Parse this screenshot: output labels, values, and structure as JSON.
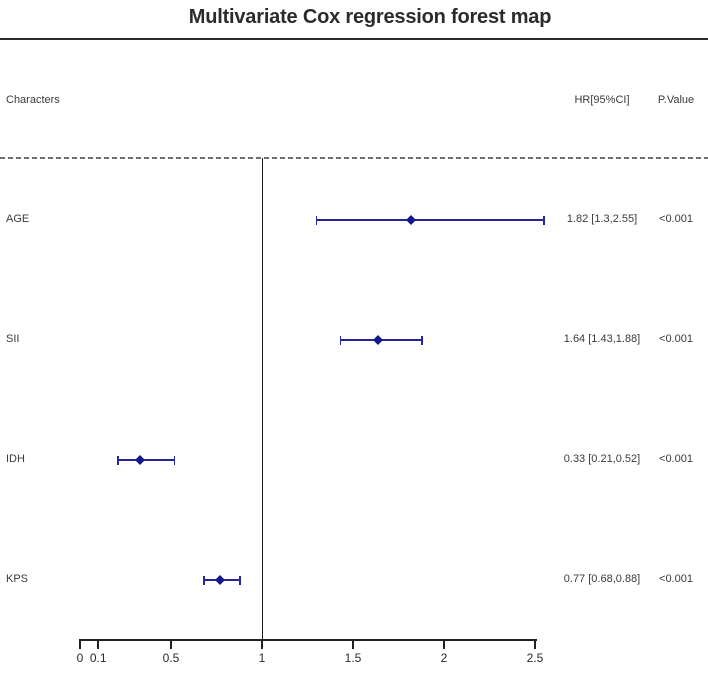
{
  "title": "Multivariate Cox regression forest map",
  "columns": {
    "characters": "Characters",
    "hr": "HR[95%CI]",
    "pvalue": "P.Value"
  },
  "chart_data": {
    "type": "forest",
    "title": "Multivariate Cox regression forest map",
    "xlabel": "",
    "x_axis": {
      "ticks": [
        0,
        0.1,
        0.5,
        1,
        1.5,
        2,
        2.5
      ],
      "tick_labels": [
        "0",
        "0.1",
        "0.5",
        "1",
        "1.5",
        "2",
        "2.5"
      ],
      "range": [
        0,
        2.55
      ],
      "reference_line": 1,
      "grid": false
    },
    "rows": [
      {
        "label": "AGE",
        "hr": 1.82,
        "ci_low": 1.3,
        "ci_high": 2.55,
        "hr_text": "1.82 [1.3,2.55]",
        "p_text": "<0.001"
      },
      {
        "label": "SII",
        "hr": 1.64,
        "ci_low": 1.43,
        "ci_high": 1.88,
        "hr_text": "1.64 [1.43,1.88]",
        "p_text": "<0.001"
      },
      {
        "label": "IDH",
        "hr": 0.33,
        "ci_low": 0.21,
        "ci_high": 0.52,
        "hr_text": "0.33 [0.21,0.52]",
        "p_text": "<0.001"
      },
      {
        "label": "KPS",
        "hr": 0.77,
        "ci_low": 0.68,
        "ci_high": 0.88,
        "hr_text": "0.77 [0.68,0.88]",
        "p_text": "<0.001"
      }
    ]
  },
  "colors": {
    "marker": "#15158c",
    "ci_line": "#26269b",
    "axis": "#222222",
    "ref_line": "#1a1a1a",
    "text": "#3a3a3a",
    "title": "#2b2b2b"
  }
}
